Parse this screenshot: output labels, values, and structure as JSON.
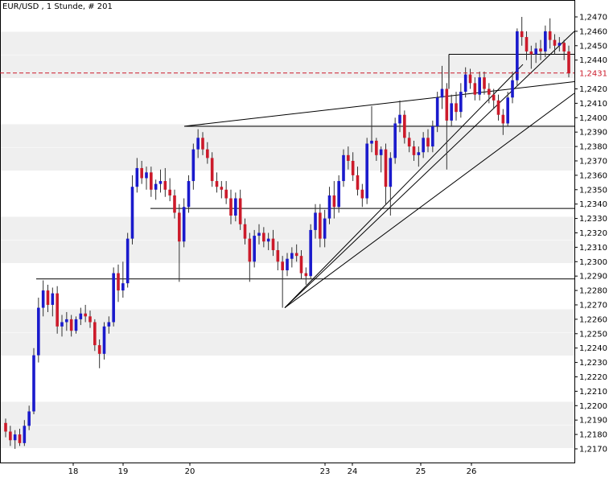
{
  "chart_data": {
    "type": "candlestick",
    "title": "EUR/USD , 1 Stunde, # 201",
    "ylim": [
      1.216,
      1.248
    ],
    "y_ticks": [
      "1,2470",
      "1,2460",
      "1,2450",
      "1,2440",
      "1,2430",
      "1,2420",
      "1,2410",
      "1,2400",
      "1,2390",
      "1,2380",
      "1,2370",
      "1,2360",
      "1,2350",
      "1,2340",
      "1,2330",
      "1,2320",
      "1,2310",
      "1,2300",
      "1,2290",
      "1,2280",
      "1,2270",
      "1,2260",
      "1,2250",
      "1,2240",
      "1,2230",
      "1,2220",
      "1,2210",
      "1,2200",
      "1,2190",
      "1,2180",
      "1,2170"
    ],
    "x_ticks": [
      "18",
      "19",
      "20",
      "23",
      "24",
      "25",
      "26"
    ],
    "last_price": 1.2431,
    "last_price_label": "1,2431",
    "grid": "alternating horizontal bands",
    "colors": {
      "up": "#1a1acc",
      "down": "#cc1a2a",
      "last_price": "#cc1a2a",
      "band": "#efefef"
    },
    "candles": [
      [
        1.2188,
        1.2191,
        1.2178,
        1.2182
      ],
      [
        1.2182,
        1.2186,
        1.2172,
        1.2176
      ],
      [
        1.2176,
        1.2183,
        1.217,
        1.218
      ],
      [
        1.218,
        1.2184,
        1.2172,
        1.2174
      ],
      [
        1.2174,
        1.219,
        1.2172,
        1.2186
      ],
      [
        1.2186,
        1.22,
        1.2183,
        1.2196
      ],
      [
        1.2196,
        1.224,
        1.2194,
        1.2235
      ],
      [
        1.2235,
        1.2275,
        1.223,
        1.2268
      ],
      [
        1.2268,
        1.2287,
        1.2262,
        1.228
      ],
      [
        1.228,
        1.2284,
        1.2265,
        1.227
      ],
      [
        1.227,
        1.2282,
        1.2262,
        1.2278
      ],
      [
        1.2278,
        1.2283,
        1.225,
        1.2255
      ],
      [
        1.2255,
        1.2263,
        1.2248,
        1.2258
      ],
      [
        1.2258,
        1.2265,
        1.2252,
        1.226
      ],
      [
        1.226,
        1.2263,
        1.2248,
        1.2252
      ],
      [
        1.2252,
        1.2262,
        1.225,
        1.226
      ],
      [
        1.226,
        1.2268,
        1.2256,
        1.2264
      ],
      [
        1.2264,
        1.227,
        1.2258,
        1.2262
      ],
      [
        1.2262,
        1.2266,
        1.2254,
        1.2258
      ],
      [
        1.2258,
        1.226,
        1.2238,
        1.2242
      ],
      [
        1.2242,
        1.2246,
        1.2226,
        1.2236
      ],
      [
        1.2236,
        1.2258,
        1.2232,
        1.2255
      ],
      [
        1.2255,
        1.2262,
        1.225,
        1.2258
      ],
      [
        1.2258,
        1.2296,
        1.2255,
        1.2292
      ],
      [
        1.2292,
        1.2298,
        1.2272,
        1.228
      ],
      [
        1.228,
        1.23,
        1.2275,
        1.2285
      ],
      [
        1.2285,
        1.232,
        1.2282,
        1.2316
      ],
      [
        1.2316,
        1.236,
        1.2312,
        1.2352
      ],
      [
        1.2352,
        1.2372,
        1.2348,
        1.2365
      ],
      [
        1.2365,
        1.237,
        1.2354,
        1.2358
      ],
      [
        1.2358,
        1.2366,
        1.235,
        1.2362
      ],
      [
        1.2362,
        1.2366,
        1.2345,
        1.235
      ],
      [
        1.235,
        1.2357,
        1.2343,
        1.2354
      ],
      [
        1.2354,
        1.2364,
        1.2348,
        1.2356
      ],
      [
        1.2356,
        1.2365,
        1.2345,
        1.235
      ],
      [
        1.235,
        1.2358,
        1.2342,
        1.2346
      ],
      [
        1.2346,
        1.235,
        1.233,
        1.2334
      ],
      [
        1.2334,
        1.234,
        1.2286,
        1.2314
      ],
      [
        1.2314,
        1.2344,
        1.231,
        1.2338
      ],
      [
        1.2338,
        1.236,
        1.2334,
        1.2356
      ],
      [
        1.2356,
        1.2382,
        1.235,
        1.2378
      ],
      [
        1.2378,
        1.2392,
        1.2372,
        1.2386
      ],
      [
        1.2386,
        1.239,
        1.2374,
        1.2378
      ],
      [
        1.2378,
        1.2383,
        1.2368,
        1.2372
      ],
      [
        1.2372,
        1.2376,
        1.2352,
        1.2356
      ],
      [
        1.2356,
        1.2362,
        1.2348,
        1.2352
      ],
      [
        1.2352,
        1.2356,
        1.2344,
        1.235
      ],
      [
        1.235,
        1.2356,
        1.234,
        1.2344
      ],
      [
        1.2344,
        1.235,
        1.2326,
        1.2332
      ],
      [
        1.2332,
        1.2348,
        1.2328,
        1.2344
      ],
      [
        1.2344,
        1.235,
        1.2322,
        1.2326
      ],
      [
        1.2326,
        1.233,
        1.2312,
        1.2316
      ],
      [
        1.2316,
        1.232,
        1.2286,
        1.23
      ],
      [
        1.23,
        1.2322,
        1.2296,
        1.2318
      ],
      [
        1.2318,
        1.2326,
        1.2312,
        1.232
      ],
      [
        1.232,
        1.2324,
        1.231,
        1.2314
      ],
      [
        1.2314,
        1.232,
        1.2308,
        1.2316
      ],
      [
        1.2316,
        1.2322,
        1.2304,
        1.2308
      ],
      [
        1.2308,
        1.2314,
        1.2294,
        1.23
      ],
      [
        1.23,
        1.2304,
        1.2268,
        1.2294
      ],
      [
        1.2294,
        1.2306,
        1.229,
        1.2302
      ],
      [
        1.2302,
        1.231,
        1.2296,
        1.2306
      ],
      [
        1.2306,
        1.2312,
        1.23,
        1.2304
      ],
      [
        1.2304,
        1.2308,
        1.2288,
        1.2292
      ],
      [
        1.2292,
        1.2296,
        1.2284,
        1.229
      ],
      [
        1.229,
        1.2326,
        1.2288,
        1.2322
      ],
      [
        1.2322,
        1.234,
        1.2316,
        1.2334
      ],
      [
        1.2334,
        1.234,
        1.231,
        1.2316
      ],
      [
        1.2316,
        1.2336,
        1.231,
        1.233
      ],
      [
        1.233,
        1.2352,
        1.2326,
        1.2346
      ],
      [
        1.2346,
        1.2356,
        1.233,
        1.2338
      ],
      [
        1.2338,
        1.236,
        1.2334,
        1.2356
      ],
      [
        1.2356,
        1.2378,
        1.2352,
        1.2374
      ],
      [
        1.2374,
        1.238,
        1.2364,
        1.237
      ],
      [
        1.237,
        1.2376,
        1.2356,
        1.236
      ],
      [
        1.236,
        1.2366,
        1.2346,
        1.235
      ],
      [
        1.235,
        1.2354,
        1.2338,
        1.2344
      ],
      [
        1.2344,
        1.2386,
        1.234,
        1.2382
      ],
      [
        1.2382,
        1.2408,
        1.2376,
        1.2384
      ],
      [
        1.2384,
        1.2386,
        1.237,
        1.2374
      ],
      [
        1.2374,
        1.238,
        1.2362,
        1.2378
      ],
      [
        1.2378,
        1.2382,
        1.234,
        1.2352
      ],
      [
        1.2352,
        1.2376,
        1.2332,
        1.2372
      ],
      [
        1.2372,
        1.24,
        1.2368,
        1.2396
      ],
      [
        1.2396,
        1.2412,
        1.239,
        1.2402
      ],
      [
        1.2402,
        1.2405,
        1.2382,
        1.2386
      ],
      [
        1.2386,
        1.239,
        1.2376,
        1.238
      ],
      [
        1.238,
        1.2384,
        1.237,
        1.2374
      ],
      [
        1.2374,
        1.238,
        1.2366,
        1.2376
      ],
      [
        1.2376,
        1.239,
        1.2372,
        1.2386
      ],
      [
        1.2386,
        1.2392,
        1.2376,
        1.238
      ],
      [
        1.238,
        1.2398,
        1.2376,
        1.2394
      ],
      [
        1.2394,
        1.2418,
        1.239,
        1.2414
      ],
      [
        1.2414,
        1.2436,
        1.2406,
        1.242
      ],
      [
        1.242,
        1.2424,
        1.2364,
        1.2398
      ],
      [
        1.2398,
        1.2416,
        1.2394,
        1.241
      ],
      [
        1.241,
        1.2418,
        1.2398,
        1.2404
      ],
      [
        1.2404,
        1.2424,
        1.24,
        1.2418
      ],
      [
        1.2418,
        1.2435,
        1.2414,
        1.243
      ],
      [
        1.243,
        1.2434,
        1.242,
        1.2424
      ],
      [
        1.2424,
        1.2428,
        1.2412,
        1.2416
      ],
      [
        1.2416,
        1.2432,
        1.2412,
        1.2428
      ],
      [
        1.2428,
        1.2432,
        1.2416,
        1.242
      ],
      [
        1.242,
        1.2424,
        1.241,
        1.2416
      ],
      [
        1.2416,
        1.242,
        1.2406,
        1.2412
      ],
      [
        1.2412,
        1.2416,
        1.2398,
        1.2402
      ],
      [
        1.2402,
        1.2406,
        1.2388,
        1.2396
      ],
      [
        1.2396,
        1.2418,
        1.2394,
        1.2414
      ],
      [
        1.2414,
        1.2432,
        1.241,
        1.2426
      ],
      [
        1.2426,
        1.2462,
        1.2422,
        1.246
      ],
      [
        1.246,
        1.247,
        1.245,
        1.2456
      ],
      [
        1.2456,
        1.246,
        1.244,
        1.2446
      ],
      [
        1.2446,
        1.245,
        1.2434,
        1.2444
      ],
      [
        1.2444,
        1.2452,
        1.2438,
        1.2448
      ],
      [
        1.2448,
        1.2454,
        1.244,
        1.2446
      ],
      [
        1.2446,
        1.2464,
        1.2442,
        1.246
      ],
      [
        1.246,
        1.2469,
        1.2448,
        1.2454
      ],
      [
        1.2454,
        1.2458,
        1.2444,
        1.245
      ],
      [
        1.245,
        1.2456,
        1.2446,
        1.2452
      ],
      [
        1.2452,
        1.2454,
        1.244,
        1.2446
      ],
      [
        1.2446,
        1.245,
        1.2428,
        1.2431
      ]
    ]
  }
}
